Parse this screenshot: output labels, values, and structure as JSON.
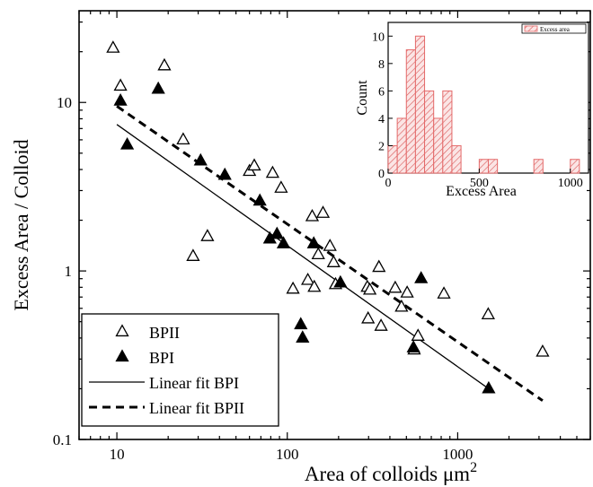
{
  "chart_data": [
    {
      "type": "scatter",
      "xlabel": "Area of colloids μm",
      "xlabel_superscript": "2",
      "ylabel": "Excess Area / Colloid",
      "xscale": "log",
      "yscale": "log",
      "xlim": [
        6,
        6000
      ],
      "ylim": [
        0.1,
        35
      ],
      "x_ticks": [
        {
          "value": 10,
          "label": "10"
        },
        {
          "value": 100,
          "label": "100"
        },
        {
          "value": 1000,
          "label": "1000"
        }
      ],
      "y_ticks": [
        {
          "value": 0.1,
          "label": "0.1"
        },
        {
          "value": 1,
          "label": "1"
        },
        {
          "value": 10,
          "label": "10"
        }
      ],
      "grid": false,
      "legend_position": "bottom-left",
      "series": [
        {
          "name": "BPII",
          "marker": "open-triangle",
          "points": [
            {
              "x": 9.5,
              "y": 21
            },
            {
              "x": 10.5,
              "y": 12.5
            },
            {
              "x": 19,
              "y": 16.5
            },
            {
              "x": 24.5,
              "y": 6.0
            },
            {
              "x": 28,
              "y": 1.22
            },
            {
              "x": 34,
              "y": 1.6
            },
            {
              "x": 60,
              "y": 3.9
            },
            {
              "x": 64,
              "y": 4.2
            },
            {
              "x": 82,
              "y": 3.8
            },
            {
              "x": 92,
              "y": 3.1
            },
            {
              "x": 108,
              "y": 0.78
            },
            {
              "x": 132,
              "y": 0.88
            },
            {
              "x": 140,
              "y": 2.1
            },
            {
              "x": 144,
              "y": 0.8
            },
            {
              "x": 152,
              "y": 1.25
            },
            {
              "x": 162,
              "y": 2.2
            },
            {
              "x": 178,
              "y": 1.4
            },
            {
              "x": 187,
              "y": 1.12
            },
            {
              "x": 192,
              "y": 0.83
            },
            {
              "x": 295,
              "y": 0.8
            },
            {
              "x": 298,
              "y": 0.52
            },
            {
              "x": 305,
              "y": 0.77
            },
            {
              "x": 345,
              "y": 1.05
            },
            {
              "x": 355,
              "y": 0.47
            },
            {
              "x": 430,
              "y": 0.79
            },
            {
              "x": 468,
              "y": 0.61
            },
            {
              "x": 505,
              "y": 0.74
            },
            {
              "x": 555,
              "y": 0.34
            },
            {
              "x": 585,
              "y": 0.41
            },
            {
              "x": 830,
              "y": 0.73
            },
            {
              "x": 1510,
              "y": 0.55
            },
            {
              "x": 3150,
              "y": 0.33
            }
          ]
        },
        {
          "name": "BPI",
          "marker": "filled-triangle",
          "points": [
            {
              "x": 10.5,
              "y": 10.2
            },
            {
              "x": 11.5,
              "y": 5.6
            },
            {
              "x": 17.5,
              "y": 12.0
            },
            {
              "x": 31,
              "y": 4.5
            },
            {
              "x": 43,
              "y": 3.7
            },
            {
              "x": 69,
              "y": 2.6
            },
            {
              "x": 79,
              "y": 1.55
            },
            {
              "x": 87,
              "y": 1.65
            },
            {
              "x": 95,
              "y": 1.45
            },
            {
              "x": 120,
              "y": 0.48
            },
            {
              "x": 123,
              "y": 0.4
            },
            {
              "x": 143,
              "y": 1.45
            },
            {
              "x": 205,
              "y": 0.85
            },
            {
              "x": 550,
              "y": 0.35
            },
            {
              "x": 610,
              "y": 0.9
            },
            {
              "x": 1520,
              "y": 0.2
            }
          ]
        },
        {
          "name": "Linear fit BPI",
          "type": "line",
          "style": "solid",
          "points": [
            {
              "x": 10,
              "y": 7.4
            },
            {
              "x": 1520,
              "y": 0.2
            }
          ]
        },
        {
          "name": "Linear fit BPII",
          "type": "line",
          "style": "dashed",
          "points": [
            {
              "x": 10,
              "y": 9.5
            },
            {
              "x": 3150,
              "y": 0.17
            }
          ]
        }
      ]
    },
    {
      "type": "bar",
      "xlabel": "Excess Area",
      "ylabel": "Count",
      "xlim": [
        0,
        1100
      ],
      "ylim": [
        0,
        11
      ],
      "x_ticks": [
        0,
        500,
        1000
      ],
      "y_ticks": [
        0,
        2,
        4,
        6,
        8,
        10
      ],
      "bin_width": 50,
      "bins": [
        {
          "start": 0,
          "count": 2
        },
        {
          "start": 50,
          "count": 4
        },
        {
          "start": 100,
          "count": 9
        },
        {
          "start": 150,
          "count": 10
        },
        {
          "start": 200,
          "count": 6
        },
        {
          "start": 250,
          "count": 4
        },
        {
          "start": 300,
          "count": 6
        },
        {
          "start": 350,
          "count": 2
        },
        {
          "start": 500,
          "count": 1
        },
        {
          "start": 550,
          "count": 1
        },
        {
          "start": 800,
          "count": 1
        },
        {
          "start": 1000,
          "count": 1
        }
      ],
      "legend": "Excess area",
      "fill_color": "#e46a6a"
    }
  ]
}
